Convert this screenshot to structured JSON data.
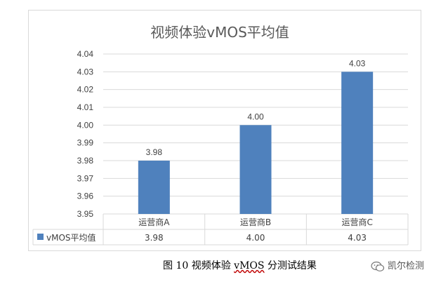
{
  "chart_data": {
    "type": "bar",
    "title": "视频体验vMOS平均值",
    "categories": [
      "运营商A",
      "运营商B",
      "运营商C"
    ],
    "series": [
      {
        "name": "vMOS平均值",
        "values": [
          3.98,
          4.0,
          4.03
        ],
        "color": "#4f81bd"
      }
    ],
    "data_labels": [
      "3.98",
      "4.00",
      "4.03"
    ],
    "table_values": [
      "3.98",
      "4.00",
      "4.03"
    ],
    "yticks": [
      "4.04",
      "4.03",
      "4.02",
      "4.01",
      "4.00",
      "3.99",
      "3.98",
      "3.97",
      "3.96",
      "3.95"
    ],
    "ylim": [
      3.95,
      4.04
    ],
    "grid": true,
    "legend": "data-table"
  },
  "caption": {
    "prefix": "图 10  视频体验 ",
    "underlined": "vMOS",
    "suffix": " 分测试结果"
  },
  "watermark": {
    "text": "凯尔检测",
    "icon": "wechat-icon"
  }
}
